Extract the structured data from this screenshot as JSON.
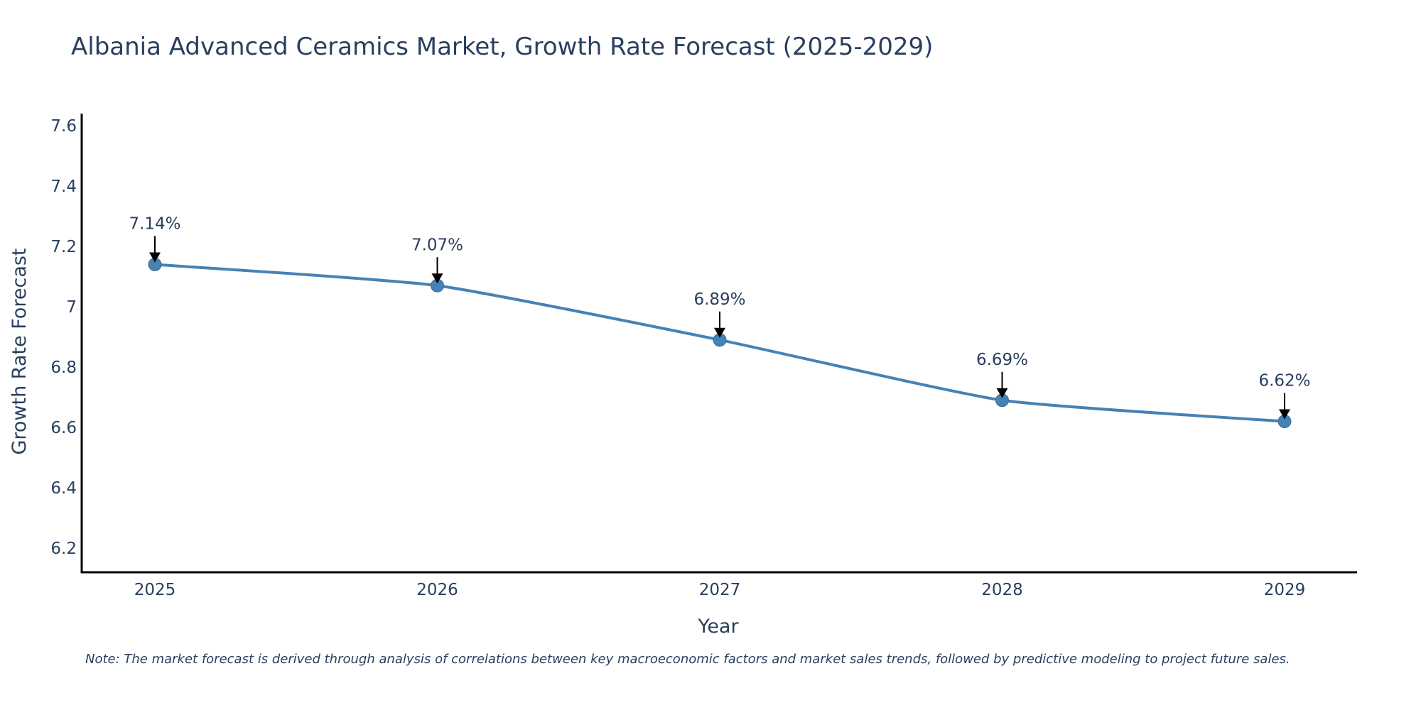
{
  "chart_data": {
    "type": "line",
    "title": "Albania Advanced Ceramics Market, Growth Rate Forecast (2025-2029)",
    "xlabel": "Year",
    "ylabel": "Growth Rate Forecast",
    "categories": [
      "2025",
      "2026",
      "2027",
      "2028",
      "2029"
    ],
    "values": [
      7.14,
      7.07,
      6.89,
      6.69,
      6.62
    ],
    "data_labels": [
      "7.14%",
      "7.07%",
      "6.89%",
      "6.69%",
      "6.62%"
    ],
    "ylim": [
      6.12,
      7.64
    ],
    "yticks": [
      6.2,
      6.4,
      6.6,
      6.8,
      7,
      7.2,
      7.4,
      7.6
    ],
    "ytick_labels": [
      "6.2",
      "6.4",
      "6.6",
      "6.8",
      "7",
      "7.2",
      "7.4",
      "7.6"
    ],
    "line_color": "#4682b4",
    "grid": false,
    "note": "Note: The market forecast is derived through analysis of correlations between key macroeconomic factors and market sales trends, followed by predictive modeling to project future sales."
  }
}
